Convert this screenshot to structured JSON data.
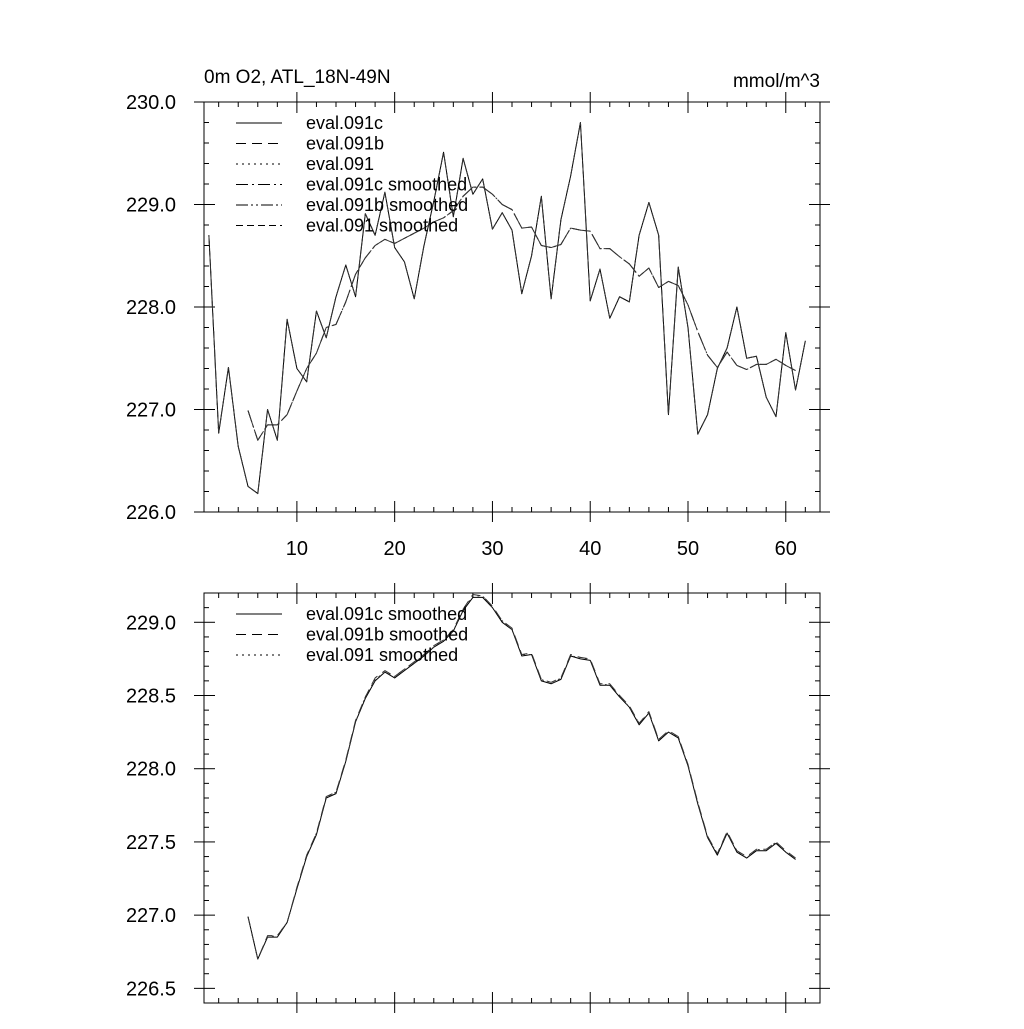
{
  "chart_data": [
    {
      "type": "line",
      "title": "0m O2, ATL_18N-49N",
      "units": "mmol/m^3",
      "xlim": [
        0.5,
        63.5
      ],
      "ylim": [
        226.0,
        230.0
      ],
      "xticks": [
        10,
        20,
        30,
        40,
        50,
        60
      ],
      "xtick_labels": [
        "10",
        "20",
        "30",
        "40",
        "50",
        "60"
      ],
      "yticks": [
        226.0,
        227.0,
        228.0,
        229.0,
        230.0
      ],
      "ytick_labels": [
        "226.0",
        "227.0",
        "228.0",
        "229.0",
        "230.0"
      ],
      "grid": false,
      "legend_position": "top-left inside",
      "series": [
        {
          "name": "eval.091c",
          "style": "solid",
          "x_start": 1,
          "values": [
            228.7,
            226.77,
            227.41,
            226.64,
            226.25,
            226.18,
            227.0,
            226.7,
            227.88,
            227.4,
            227.27,
            227.96,
            227.7,
            228.1,
            228.41,
            228.1,
            228.91,
            228.7,
            229.12,
            228.58,
            228.44,
            228.08,
            228.6,
            229.03,
            229.51,
            228.88,
            229.45,
            229.1,
            229.25,
            228.76,
            228.92,
            228.75,
            228.13,
            228.5,
            229.08,
            228.08,
            228.85,
            229.28,
            229.8,
            228.06,
            228.37,
            227.89,
            228.1,
            228.05,
            228.7,
            229.02,
            228.7,
            226.95,
            228.39,
            227.8,
            226.76,
            226.95,
            227.4,
            227.6,
            228.0,
            227.5,
            227.52,
            227.12,
            226.93,
            227.75,
            227.19,
            227.67
          ]
        },
        {
          "name": "eval.091b",
          "style": "dashed",
          "x_start": 1,
          "values": [
            228.7,
            226.77,
            227.41,
            226.64,
            226.25,
            226.18,
            227.0,
            226.7,
            227.88,
            227.4,
            227.27,
            227.96,
            227.7,
            228.1,
            228.41,
            228.1,
            228.91,
            228.7,
            229.12,
            228.58,
            228.44,
            228.08,
            228.6,
            229.03,
            229.51,
            228.88,
            229.45,
            229.1,
            229.25,
            228.76,
            228.92,
            228.75,
            228.13,
            228.5,
            229.08,
            228.08,
            228.85,
            229.28,
            229.8,
            228.06,
            228.37,
            227.89,
            228.1,
            228.05,
            228.7,
            229.02,
            228.7,
            226.95,
            228.39,
            227.8,
            226.76,
            226.95,
            227.4,
            227.6,
            228.0,
            227.5,
            227.52,
            227.12,
            226.93,
            227.75,
            227.19,
            227.67
          ]
        },
        {
          "name": "eval.091",
          "style": "dotted",
          "x_start": 1,
          "values": [
            228.7,
            226.77,
            227.41,
            226.64,
            226.25,
            226.18,
            227.0,
            226.7,
            227.88,
            227.4,
            227.27,
            227.96,
            227.7,
            228.1,
            228.41,
            228.1,
            228.91,
            228.7,
            229.12,
            228.58,
            228.44,
            228.08,
            228.6,
            229.03,
            229.51,
            228.88,
            229.45,
            229.1,
            229.25,
            228.76,
            228.92,
            228.75,
            228.13,
            228.5,
            229.08,
            228.08,
            228.85,
            229.28,
            229.8,
            228.06,
            228.37,
            227.89,
            228.1,
            228.05,
            228.7,
            229.02,
            228.7,
            226.95,
            228.39,
            227.8,
            226.76,
            226.95,
            227.4,
            227.6,
            228.0,
            227.5,
            227.52,
            227.12,
            226.93,
            227.75,
            227.19,
            227.67
          ]
        },
        {
          "name": "eval.091c smoothed",
          "style": "dashdot",
          "x_start": 5,
          "values": [
            226.99,
            226.7,
            226.85,
            226.85,
            226.95,
            227.18,
            227.4,
            227.55,
            227.8,
            227.83,
            228.05,
            228.32,
            228.48,
            228.6,
            228.66,
            228.62,
            228.67,
            228.72,
            228.77,
            228.83,
            228.87,
            228.94,
            229.08,
            229.17,
            229.17,
            229.1,
            229.0,
            228.95,
            228.77,
            228.78,
            228.6,
            228.58,
            228.61,
            228.77,
            228.75,
            228.74,
            228.57,
            228.57,
            228.49,
            228.42,
            228.3,
            228.38,
            228.19,
            228.25,
            228.21,
            228.02,
            227.76,
            227.53,
            227.41,
            227.56,
            227.43,
            227.39,
            227.44,
            227.44,
            227.49,
            227.43,
            227.38
          ]
        },
        {
          "name": "eval.091b smoothed",
          "style": "dashdotdot",
          "x_start": 5,
          "values": [
            226.99,
            226.7,
            226.85,
            226.85,
            226.95,
            227.18,
            227.4,
            227.55,
            227.8,
            227.83,
            228.05,
            228.32,
            228.48,
            228.6,
            228.66,
            228.62,
            228.67,
            228.72,
            228.77,
            228.83,
            228.87,
            228.94,
            229.08,
            229.17,
            229.17,
            229.1,
            229.0,
            228.95,
            228.77,
            228.78,
            228.6,
            228.58,
            228.61,
            228.77,
            228.75,
            228.74,
            228.57,
            228.57,
            228.49,
            228.42,
            228.3,
            228.38,
            228.19,
            228.25,
            228.21,
            228.02,
            227.76,
            227.53,
            227.41,
            227.56,
            227.43,
            227.39,
            227.44,
            227.44,
            227.49,
            227.43,
            227.38
          ]
        },
        {
          "name": "eval.091 smoothed",
          "style": "longdash",
          "x_start": 5,
          "values": [
            226.99,
            226.7,
            226.85,
            226.85,
            226.95,
            227.18,
            227.4,
            227.55,
            227.8,
            227.83,
            228.05,
            228.32,
            228.48,
            228.6,
            228.66,
            228.62,
            228.67,
            228.72,
            228.77,
            228.83,
            228.87,
            228.94,
            229.08,
            229.17,
            229.17,
            229.1,
            229.0,
            228.95,
            228.77,
            228.78,
            228.6,
            228.58,
            228.61,
            228.77,
            228.75,
            228.74,
            228.57,
            228.57,
            228.49,
            228.42,
            228.3,
            228.38,
            228.19,
            228.25,
            228.21,
            228.02,
            227.76,
            227.53,
            227.41,
            227.56,
            227.43,
            227.39,
            227.44,
            227.44,
            227.49,
            227.43,
            227.38
          ]
        }
      ]
    },
    {
      "type": "line",
      "title": "",
      "xlim": [
        0.5,
        63.5
      ],
      "ylim": [
        226.4,
        229.2
      ],
      "xticks": [
        10,
        20,
        30,
        40,
        50,
        60
      ],
      "xtick_labels": [],
      "yticks": [
        226.5,
        227.0,
        227.5,
        228.0,
        228.5,
        229.0
      ],
      "ytick_labels": [
        "226.5",
        "227.0",
        "227.5",
        "228.0",
        "228.5",
        "229.0"
      ],
      "grid": false,
      "legend_position": "top-left inside",
      "series": [
        {
          "name": "eval.091c smoothed",
          "style": "solid",
          "x_start": 5,
          "values": [
            226.99,
            226.7,
            226.85,
            226.85,
            226.95,
            227.18,
            227.4,
            227.55,
            227.8,
            227.83,
            228.05,
            228.32,
            228.48,
            228.6,
            228.66,
            228.62,
            228.67,
            228.72,
            228.77,
            228.83,
            228.87,
            228.94,
            229.08,
            229.17,
            229.17,
            229.1,
            229.0,
            228.95,
            228.77,
            228.78,
            228.6,
            228.58,
            228.61,
            228.77,
            228.75,
            228.74,
            228.57,
            228.57,
            228.49,
            228.42,
            228.3,
            228.38,
            228.19,
            228.25,
            228.21,
            228.02,
            227.76,
            227.53,
            227.41,
            227.56,
            227.43,
            227.39,
            227.44,
            227.44,
            227.49,
            227.43,
            227.38
          ]
        },
        {
          "name": "eval.091b smoothed",
          "style": "dashed",
          "x_start": 5,
          "values": [
            226.99,
            226.7,
            226.86,
            226.86,
            226.95,
            227.19,
            227.41,
            227.56,
            227.81,
            227.84,
            228.06,
            228.33,
            228.49,
            228.62,
            228.67,
            228.63,
            228.68,
            228.73,
            228.78,
            228.84,
            228.88,
            228.95,
            229.09,
            229.19,
            229.18,
            229.11,
            229.01,
            228.96,
            228.78,
            228.79,
            228.61,
            228.59,
            228.62,
            228.78,
            228.76,
            228.75,
            228.58,
            228.58,
            228.5,
            228.43,
            228.31,
            228.39,
            228.2,
            228.26,
            228.22,
            228.03,
            227.77,
            227.54,
            227.42,
            227.57,
            227.44,
            227.4,
            227.45,
            227.45,
            227.5,
            227.44,
            227.39
          ]
        },
        {
          "name": "eval.091 smoothed",
          "style": "dotted",
          "x_start": 5,
          "values": [
            226.99,
            226.7,
            226.85,
            226.86,
            226.95,
            227.18,
            227.4,
            227.56,
            227.8,
            227.84,
            228.05,
            228.32,
            228.49,
            228.61,
            228.66,
            228.63,
            228.68,
            228.72,
            228.78,
            228.83,
            228.88,
            228.94,
            229.09,
            229.18,
            229.18,
            229.1,
            229.01,
            228.95,
            228.78,
            228.78,
            228.61,
            228.58,
            228.62,
            228.77,
            228.76,
            228.74,
            228.58,
            228.57,
            228.5,
            228.42,
            228.31,
            228.38,
            228.2,
            228.25,
            228.22,
            228.02,
            227.77,
            227.53,
            227.42,
            227.56,
            227.44,
            227.39,
            227.45,
            227.44,
            227.5,
            227.43,
            227.39
          ]
        }
      ]
    }
  ]
}
